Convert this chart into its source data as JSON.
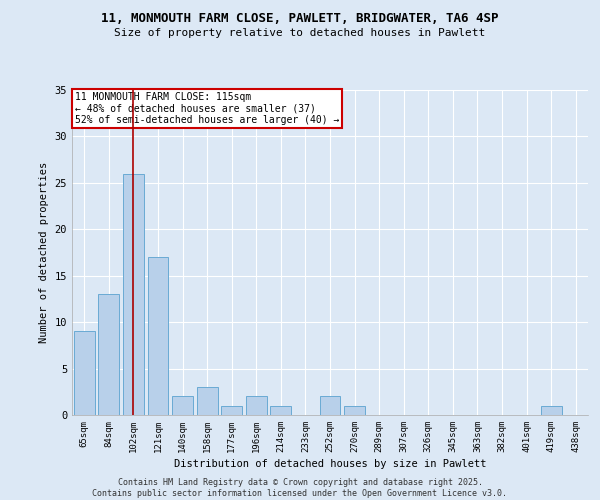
{
  "title_line1": "11, MONMOUTH FARM CLOSE, PAWLETT, BRIDGWATER, TA6 4SP",
  "title_line2": "Size of property relative to detached houses in Pawlett",
  "xlabel": "Distribution of detached houses by size in Pawlett",
  "ylabel": "Number of detached properties",
  "categories": [
    "65sqm",
    "84sqm",
    "102sqm",
    "121sqm",
    "140sqm",
    "158sqm",
    "177sqm",
    "196sqm",
    "214sqm",
    "233sqm",
    "252sqm",
    "270sqm",
    "289sqm",
    "307sqm",
    "326sqm",
    "345sqm",
    "363sqm",
    "382sqm",
    "401sqm",
    "419sqm",
    "438sqm"
  ],
  "values": [
    9,
    13,
    26,
    17,
    2,
    3,
    1,
    2,
    1,
    0,
    2,
    1,
    0,
    0,
    0,
    0,
    0,
    0,
    0,
    1,
    0
  ],
  "bar_color": "#b8d0ea",
  "bar_edge_color": "#6aaad4",
  "vline_x_index": 2,
  "vline_color": "#aa0000",
  "annotation_title": "11 MONMOUTH FARM CLOSE: 115sqm",
  "annotation_line2": "← 48% of detached houses are smaller (37)",
  "annotation_line3": "52% of semi-detached houses are larger (40) →",
  "annotation_box_color": "#ffffff",
  "annotation_box_edge": "#cc0000",
  "ylim": [
    0,
    35
  ],
  "yticks": [
    0,
    5,
    10,
    15,
    20,
    25,
    30,
    35
  ],
  "background_color": "#dce8f5",
  "grid_color": "#ffffff",
  "footer_line1": "Contains HM Land Registry data © Crown copyright and database right 2025.",
  "footer_line2": "Contains public sector information licensed under the Open Government Licence v3.0."
}
